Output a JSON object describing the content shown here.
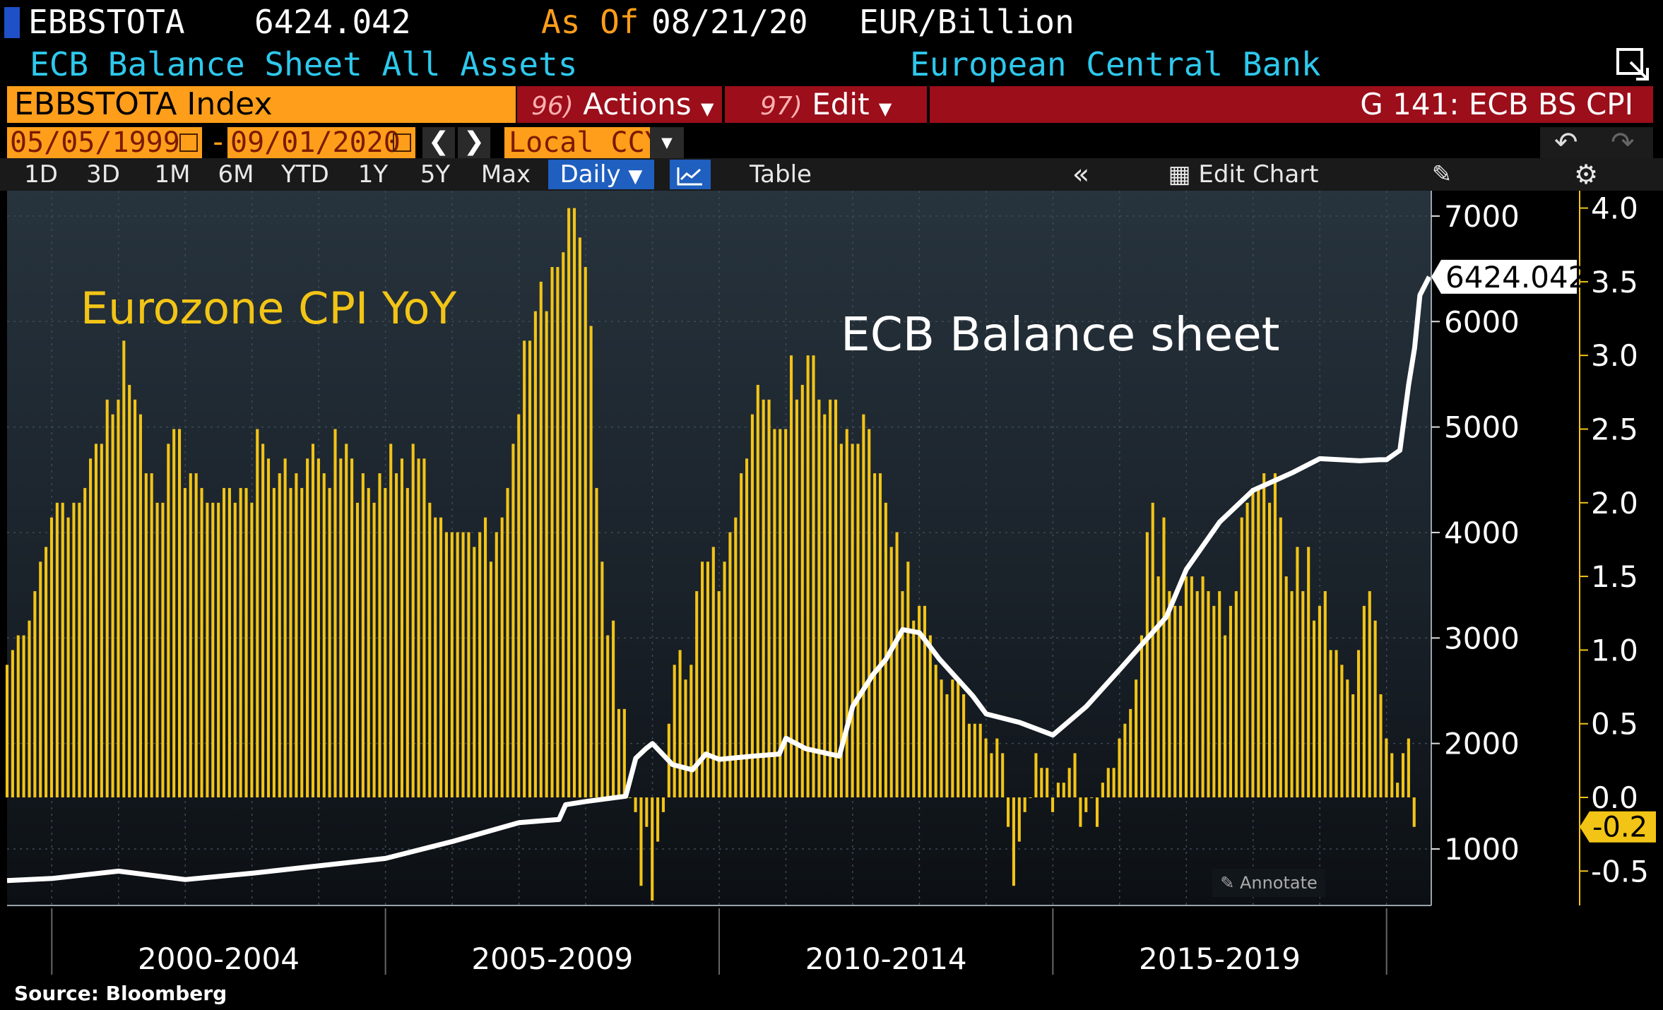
{
  "header": {
    "ticker": "EBBSTOTA",
    "last_value": "6424.042",
    "as_of_label": "As Of",
    "as_of_date": "08/21/20",
    "units": "EUR/Billion",
    "description": "ECB Balance Sheet All Assets",
    "source_name": "European Central Bank"
  },
  "toolbar": {
    "index_name": "EBBSTOTA Index",
    "actions_num": "96)",
    "actions_label": "Actions",
    "edit_num": "97)",
    "edit_label": "Edit",
    "chart_title": "G 141: ECB BS CPI",
    "start_date": "05/05/1999",
    "end_date": "09/01/2020",
    "date_sep": "-",
    "currency": "Local CCY"
  },
  "tabs": {
    "ranges": [
      "1D",
      "3D",
      "1M",
      "6M",
      "YTD",
      "1Y",
      "5Y",
      "Max"
    ],
    "frequency": "Daily",
    "table_label": "Table",
    "edit_chart_label": "Edit Chart"
  },
  "colors": {
    "cpi_bars": "#f2c416",
    "balance_line": "#ffffff",
    "orange": "#ff9e1b",
    "cyan": "#2ec8ec",
    "red": "#9b0e1a"
  },
  "chart_data": {
    "type": "bar+line",
    "annotations": [
      "Eurozone CPI YoY",
      "ECB Balance sheet"
    ],
    "x_period_labels": [
      "2000-2004",
      "2005-2009",
      "2010-2014",
      "2015-2019"
    ],
    "x_range_years": [
      1999.33,
      2020.67
    ],
    "left_axis": {
      "series": "ECB Balance sheet",
      "ticks": [
        1000,
        2000,
        3000,
        4000,
        5000,
        6000,
        7000
      ]
    },
    "right_axis": {
      "series": "Eurozone CPI YoY",
      "ticks": [
        -0.5,
        0.0,
        0.5,
        1.0,
        1.5,
        2.0,
        2.5,
        3.0,
        3.5,
        4.0
      ]
    },
    "last_value_left": "6424.042",
    "last_value_right": "-0.2",
    "cpi_yoy": {
      "start_year": 1999.33,
      "step_months": 1,
      "values": [
        0.9,
        1.0,
        1.1,
        1.1,
        1.2,
        1.4,
        1.6,
        1.7,
        1.9,
        2.0,
        2.0,
        1.9,
        2.0,
        2.0,
        2.1,
        2.3,
        2.4,
        2.4,
        2.7,
        2.6,
        2.7,
        3.1,
        2.8,
        2.7,
        2.6,
        2.2,
        2.2,
        2.0,
        2.0,
        2.4,
        2.5,
        2.5,
        2.1,
        2.2,
        2.2,
        2.1,
        2.0,
        2.0,
        2.0,
        2.1,
        2.1,
        2.0,
        2.1,
        2.1,
        2.0,
        2.5,
        2.4,
        2.3,
        2.1,
        2.2,
        2.3,
        2.1,
        2.2,
        2.1,
        2.3,
        2.4,
        2.3,
        2.2,
        2.1,
        2.5,
        2.3,
        2.4,
        2.3,
        2.0,
        2.2,
        2.1,
        2.0,
        2.2,
        2.1,
        2.4,
        2.2,
        2.3,
        2.1,
        2.4,
        2.3,
        2.3,
        2.0,
        1.9,
        1.9,
        1.8,
        1.8,
        1.8,
        1.8,
        1.8,
        1.7,
        1.8,
        1.9,
        1.6,
        1.8,
        1.9,
        2.1,
        2.4,
        2.6,
        3.1,
        3.1,
        3.3,
        3.5,
        3.3,
        3.6,
        3.6,
        3.7,
        4.0,
        4.0,
        3.8,
        3.6,
        3.2,
        2.1,
        1.6,
        1.1,
        1.2,
        0.6,
        0.6,
        0.0,
        -0.1,
        -0.6,
        -0.2,
        -0.7,
        -0.3,
        -0.1,
        0.5,
        0.9,
        1.0,
        0.8,
        0.9,
        1.4,
        1.6,
        1.6,
        1.7,
        1.4,
        1.6,
        1.8,
        1.9,
        2.2,
        2.3,
        2.6,
        2.8,
        2.7,
        2.7,
        2.5,
        2.5,
        2.5,
        3.0,
        2.7,
        2.8,
        3.0,
        3.0,
        2.7,
        2.6,
        2.7,
        2.7,
        2.4,
        2.5,
        2.4,
        2.4,
        2.6,
        2.5,
        2.2,
        2.2,
        2.0,
        1.7,
        1.8,
        1.4,
        1.6,
        1.2,
        1.3,
        1.3,
        1.1,
        0.9,
        0.8,
        0.7,
        0.8,
        0.8,
        0.7,
        0.5,
        0.5,
        0.5,
        0.4,
        0.3,
        0.4,
        0.3,
        -0.2,
        -0.6,
        -0.3,
        -0.1,
        0.0,
        0.3,
        0.2,
        0.2,
        -0.1,
        0.1,
        0.1,
        0.2,
        0.3,
        -0.2,
        -0.1,
        0.0,
        -0.2,
        0.1,
        0.2,
        0.2,
        0.4,
        0.5,
        0.6,
        0.8,
        1.1,
        1.8,
        2.0,
        1.5,
        1.9,
        1.4,
        1.3,
        1.3,
        1.5,
        1.5,
        1.4,
        1.5,
        1.4,
        1.3,
        1.4,
        1.1,
        1.3,
        1.4,
        1.9,
        2.0,
        2.1,
        2.1,
        2.2,
        2.0,
        2.2,
        1.9,
        1.5,
        1.4,
        1.7,
        1.4,
        1.7,
        1.2,
        1.3,
        1.4,
        1.0,
        1.0,
        0.9,
        0.8,
        0.7,
        1.0,
        1.3,
        1.4,
        1.2,
        0.7,
        0.4,
        0.3,
        0.1,
        0.3,
        0.4,
        -0.2
      ]
    },
    "balance_sheet": {
      "points": [
        [
          1999.33,
          700
        ],
        [
          2000.0,
          720
        ],
        [
          2001.0,
          790
        ],
        [
          2002.0,
          710
        ],
        [
          2003.0,
          770
        ],
        [
          2004.0,
          840
        ],
        [
          2005.0,
          910
        ],
        [
          2006.0,
          1070
        ],
        [
          2007.0,
          1250
        ],
        [
          2007.6,
          1280
        ],
        [
          2007.7,
          1420
        ],
        [
          2008.0,
          1450
        ],
        [
          2008.6,
          1500
        ],
        [
          2008.75,
          1860
        ],
        [
          2008.9,
          1950
        ],
        [
          2009.0,
          2000
        ],
        [
          2009.3,
          1800
        ],
        [
          2009.6,
          1750
        ],
        [
          2009.8,
          1900
        ],
        [
          2010.0,
          1850
        ],
        [
          2010.5,
          1880
        ],
        [
          2010.9,
          1900
        ],
        [
          2011.0,
          2050
        ],
        [
          2011.3,
          1950
        ],
        [
          2011.8,
          1880
        ],
        [
          2012.0,
          2350
        ],
        [
          2012.3,
          2650
        ],
        [
          2012.5,
          2800
        ],
        [
          2012.75,
          3080
        ],
        [
          2013.0,
          3050
        ],
        [
          2013.3,
          2800
        ],
        [
          2013.8,
          2450
        ],
        [
          2014.0,
          2280
        ],
        [
          2014.5,
          2200
        ],
        [
          2015.0,
          2080
        ],
        [
          2015.5,
          2350
        ],
        [
          2016.0,
          2700
        ],
        [
          2016.7,
          3200
        ],
        [
          2017.0,
          3650
        ],
        [
          2017.5,
          4100
        ],
        [
          2018.0,
          4400
        ],
        [
          2018.6,
          4570
        ],
        [
          2019.0,
          4700
        ],
        [
          2019.6,
          4680
        ],
        [
          2019.9,
          4690
        ],
        [
          2020.0,
          4690
        ],
        [
          2020.2,
          4780
        ],
        [
          2020.33,
          5400
        ],
        [
          2020.42,
          5750
        ],
        [
          2020.5,
          6250
        ],
        [
          2020.64,
          6424
        ]
      ]
    }
  },
  "footer": {
    "annotate_label": "Annotate",
    "source": "Source: Bloomberg"
  }
}
